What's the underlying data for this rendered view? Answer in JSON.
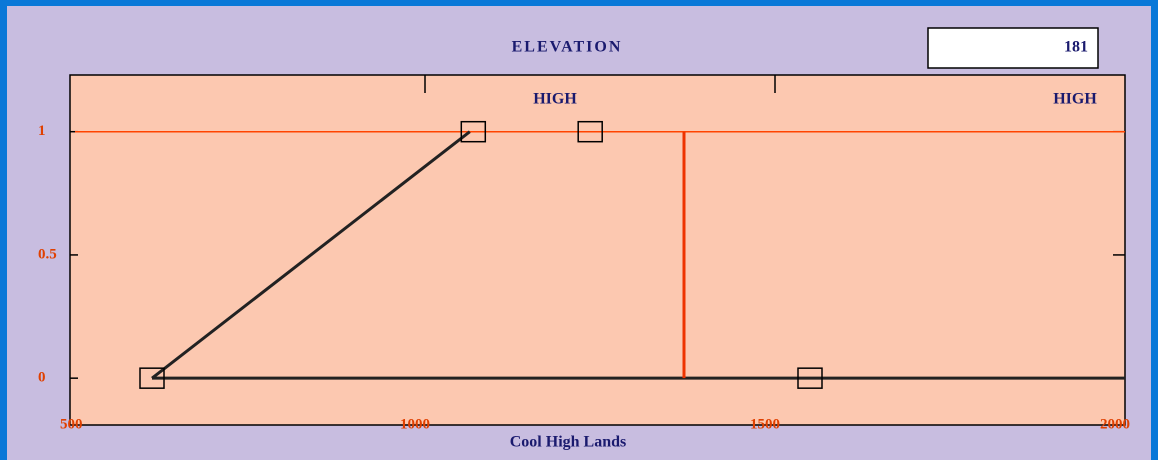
{
  "chart_data": {
    "type": "line",
    "title": "ELEVATION",
    "value_box": "181",
    "xlabel": "Cool High Lands",
    "annotations": [
      "HIGH",
      "HIGH"
    ],
    "xlim": [
      500,
      2000
    ],
    "xticks": [
      500,
      1000,
      1500,
      2000
    ],
    "ylim": [
      -0.19,
      1.23
    ],
    "yticks": [
      0,
      0.5,
      1
    ],
    "series": [
      {
        "color": "#ff4400",
        "x": [
          500,
          2000
        ],
        "values": [
          1,
          1
        ]
      },
      {
        "color": "#222222",
        "x": [
          610,
          2000
        ],
        "values": [
          0,
          0
        ]
      },
      {
        "color": "#222222",
        "x": [
          610,
          1064
        ],
        "values": [
          0,
          1
        ]
      },
      {
        "color": "#ee3300",
        "x": [
          1370,
          1370
        ],
        "values": [
          0,
          1
        ]
      }
    ],
    "handles": {
      "x": [
        610,
        1069,
        1236,
        1550
      ],
      "values": [
        0,
        1,
        1,
        0
      ]
    }
  }
}
